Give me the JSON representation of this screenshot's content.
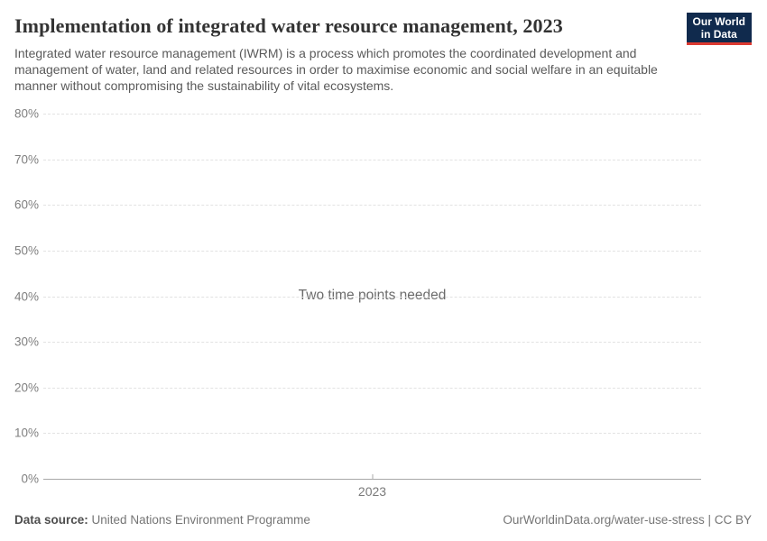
{
  "header": {
    "title": "Implementation of integrated water resource management, 2023",
    "subtitle": "Integrated water resource management (IWRM) is a process which promotes the coordinated development and management of water, land and related resources in order to maximise economic and social welfare in an equitable manner without compromising the sustainability of vital ecosystems.",
    "logo": {
      "line1": "Our World",
      "line2": "in Data",
      "background_color": "#102a4d",
      "accent_color": "#dc3a31"
    }
  },
  "chart_data": {
    "type": "line",
    "title": "Implementation of integrated water resource management, 2023",
    "series": [],
    "empty_state_message": "Two time points needed",
    "ylim": [
      0,
      80
    ],
    "yticks": [
      {
        "label": "0%",
        "value": 0
      },
      {
        "label": "10%",
        "value": 10
      },
      {
        "label": "20%",
        "value": 20
      },
      {
        "label": "30%",
        "value": 30
      },
      {
        "label": "40%",
        "value": 40
      },
      {
        "label": "50%",
        "value": 50
      },
      {
        "label": "60%",
        "value": 60
      },
      {
        "label": "70%",
        "value": 70
      },
      {
        "label": "80%",
        "value": 80
      }
    ],
    "xticks": [
      {
        "label": "2023",
        "position": 0.5
      }
    ],
    "grid": true,
    "gridline_color": "#e2e2e2",
    "axis_color": "#a8a8a8",
    "tick_label_color": "#7f7f7f"
  },
  "footer": {
    "data_source_label": "Data source:",
    "data_source_value": "United Nations Environment Programme",
    "credit_text": "OurWorldinData.org/water-use-stress | CC BY"
  }
}
